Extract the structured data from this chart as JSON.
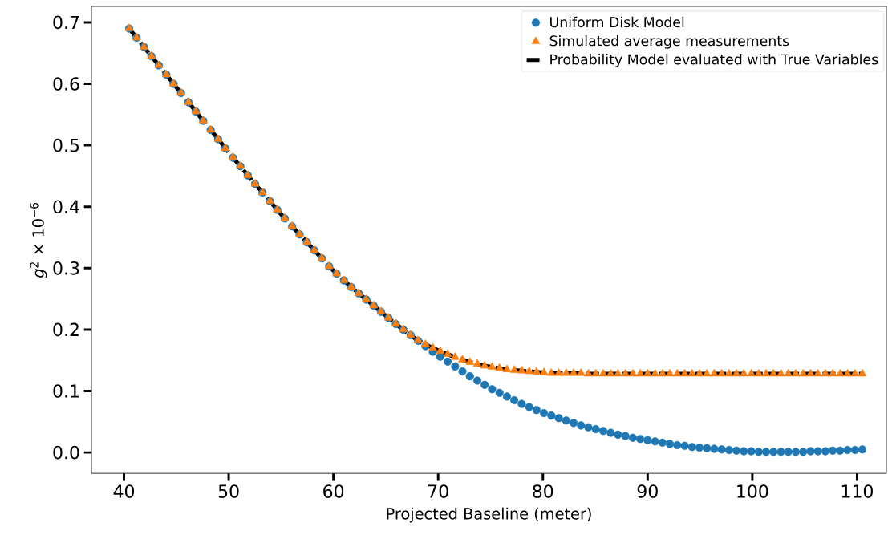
{
  "chart_data": {
    "type": "scatter",
    "xlabel": "Projected Baseline (meter)",
    "ylabel": "*g*$^{2}$ × 10$^{−6}$",
    "xlim": [
      36.9,
      112.8
    ],
    "ylim": [
      -0.034,
      0.726
    ],
    "xticks": [
      40,
      50,
      60,
      70,
      80,
      90,
      100,
      110
    ],
    "yticks": [
      {
        "value": 0,
        "label": "0.0"
      },
      {
        "value": 0.1,
        "label": "0.1"
      },
      {
        "value": 0.2,
        "label": "0.2"
      },
      {
        "value": 0.3,
        "label": "0.3"
      },
      {
        "value": 0.4,
        "label": "0.4"
      },
      {
        "value": 0.5,
        "label": "0.5"
      },
      {
        "value": 0.6,
        "label": "0.6"
      },
      {
        "value": 0.7,
        "label": "0.7"
      }
    ],
    "legend": "top right",
    "grid": false,
    "x": [
      40.5,
      41.21,
      41.91,
      42.62,
      43.33,
      44.04,
      44.74,
      45.45,
      46.16,
      46.86,
      47.57,
      48.28,
      48.99,
      49.69,
      50.4,
      51.11,
      51.82,
      52.52,
      53.23,
      53.94,
      54.64,
      55.35,
      56.06,
      56.77,
      57.47,
      58.18,
      58.89,
      59.59,
      60.3,
      61.01,
      61.72,
      62.42,
      63.13,
      63.84,
      64.54,
      65.25,
      65.96,
      66.67,
      67.37,
      68.08,
      68.79,
      69.49,
      70.2,
      70.91,
      71.62,
      72.32,
      73.03,
      73.74,
      74.44,
      75.15,
      75.86,
      76.57,
      77.27,
      77.98,
      78.69,
      79.39,
      80.1,
      80.81,
      81.52,
      82.22,
      82.93,
      83.64,
      84.34,
      85.05,
      85.76,
      86.47,
      87.17,
      87.88,
      88.59,
      89.29,
      90.0,
      90.71,
      91.42,
      92.12,
      92.83,
      93.54,
      94.24,
      94.95,
      95.66,
      96.36,
      97.07,
      97.78,
      98.48,
      99.19,
      99.9,
      100.61,
      101.31,
      102.02,
      102.73,
      103.43,
      104.14,
      104.85,
      105.56,
      106.26,
      106.97,
      107.68,
      108.38,
      109.09,
      109.8,
      110.5
    ],
    "series": [
      {
        "name": "Uniform Disk Model",
        "marker": "circle",
        "color": "#1f77b4",
        "values": [
          0.69,
          0.675,
          0.66,
          0.645,
          0.63,
          0.615,
          0.6,
          0.585,
          0.57,
          0.555,
          0.54,
          0.525,
          0.51,
          0.495,
          0.48,
          0.466,
          0.451,
          0.437,
          0.423,
          0.409,
          0.395,
          0.381,
          0.368,
          0.355,
          0.342,
          0.329,
          0.316,
          0.303,
          0.291,
          0.28,
          0.269,
          0.259,
          0.249,
          0.239,
          0.229,
          0.219,
          0.209,
          0.2,
          0.191,
          0.182,
          0.173,
          0.164,
          0.156,
          0.148,
          0.14,
          0.132,
          0.124,
          0.117,
          0.11,
          0.103,
          0.097,
          0.091,
          0.085,
          0.079,
          0.074,
          0.069,
          0.064,
          0.06,
          0.056,
          0.052,
          0.048,
          0.044,
          0.041,
          0.038,
          0.035,
          0.032,
          0.029,
          0.027,
          0.024,
          0.022,
          0.02,
          0.018,
          0.016,
          0.014,
          0.012,
          0.011,
          0.009,
          0.008,
          0.007,
          0.006,
          0.005,
          0.004,
          0.003,
          0.002,
          0.002,
          0.001,
          0.001,
          0.001,
          0.001,
          0.001,
          0.001,
          0.001,
          0.002,
          0.002,
          0.002,
          0.003,
          0.003,
          0.004,
          0.004,
          0.005
        ]
      },
      {
        "name": "Simulated average measurements",
        "marker": "triangle",
        "color": "#ff7f0e",
        "values": [
          0.69,
          0.675,
          0.66,
          0.645,
          0.63,
          0.615,
          0.6,
          0.585,
          0.57,
          0.555,
          0.54,
          0.525,
          0.51,
          0.495,
          0.48,
          0.466,
          0.451,
          0.437,
          0.423,
          0.409,
          0.395,
          0.381,
          0.368,
          0.355,
          0.342,
          0.329,
          0.316,
          0.303,
          0.291,
          0.28,
          0.269,
          0.259,
          0.249,
          0.239,
          0.229,
          0.219,
          0.209,
          0.2,
          0.191,
          0.182,
          0.176,
          0.17,
          0.165,
          0.16,
          0.155,
          0.151,
          0.147,
          0.144,
          0.141,
          0.139,
          0.137,
          0.135,
          0.134,
          0.133,
          0.132,
          0.131,
          0.13,
          0.129,
          0.129,
          0.129,
          0.129,
          0.129,
          0.128,
          0.128,
          0.128,
          0.128,
          0.128,
          0.128,
          0.128,
          0.128,
          0.128,
          0.128,
          0.128,
          0.128,
          0.128,
          0.128,
          0.128,
          0.128,
          0.128,
          0.128,
          0.128,
          0.128,
          0.128,
          0.128,
          0.128,
          0.128,
          0.128,
          0.128,
          0.128,
          0.128,
          0.128,
          0.128,
          0.128,
          0.128,
          0.128,
          0.128,
          0.128,
          0.128,
          0.128,
          0.128
        ]
      },
      {
        "name": "Probability Model evaluated with True Variables",
        "type": "line",
        "marker": "none",
        "line_style": "dashed",
        "color": "#000000",
        "values": [
          0.69,
          0.675,
          0.66,
          0.645,
          0.63,
          0.615,
          0.6,
          0.585,
          0.57,
          0.555,
          0.54,
          0.525,
          0.51,
          0.495,
          0.48,
          0.466,
          0.451,
          0.437,
          0.423,
          0.409,
          0.395,
          0.381,
          0.368,
          0.355,
          0.342,
          0.329,
          0.316,
          0.303,
          0.291,
          0.28,
          0.269,
          0.259,
          0.249,
          0.239,
          0.229,
          0.219,
          0.209,
          0.2,
          0.191,
          0.182,
          0.176,
          0.17,
          0.165,
          0.16,
          0.155,
          0.151,
          0.147,
          0.144,
          0.141,
          0.139,
          0.137,
          0.135,
          0.134,
          0.133,
          0.132,
          0.131,
          0.13,
          0.129,
          0.129,
          0.129,
          0.129,
          0.129,
          0.128,
          0.128,
          0.128,
          0.128,
          0.128,
          0.128,
          0.128,
          0.128,
          0.128,
          0.128,
          0.128,
          0.128,
          0.128,
          0.128,
          0.128,
          0.128,
          0.128,
          0.128,
          0.128,
          0.128,
          0.128,
          0.128,
          0.128,
          0.128,
          0.128,
          0.128,
          0.128,
          0.128,
          0.128,
          0.128,
          0.128,
          0.128,
          0.128,
          0.128,
          0.128,
          0.128,
          0.128,
          0.128
        ]
      }
    ]
  }
}
